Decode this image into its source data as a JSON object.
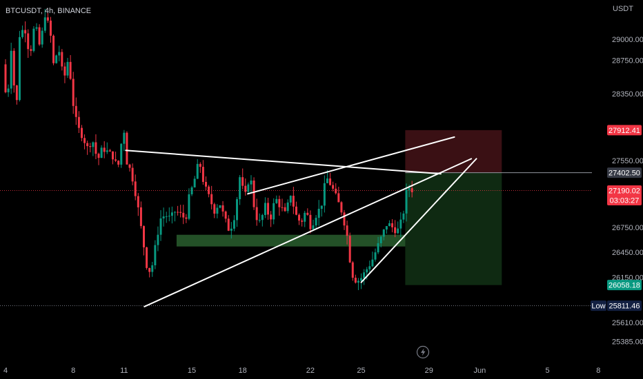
{
  "header": {
    "symbol": "BTCUSDT",
    "interval": "4h",
    "exchange": "BINANCE",
    "separator": ", "
  },
  "currency_label": "USDT",
  "footer_icon": "lightning-icon",
  "colors": {
    "background": "#000000",
    "up": "#089981",
    "down": "#f23645",
    "drawing": "#ffffff",
    "zone": "#2f6b34",
    "stop_zone": "#3a1014",
    "target_zone": "#0f2a12",
    "axis_text": "#b2b5be"
  },
  "chart_data": {
    "type": "candlestick",
    "ylim": [
      25200,
      29350
    ],
    "x_domain": [
      0,
      36
    ],
    "y_ticks": [
      29000,
      28750,
      28350,
      27550,
      26750,
      26450,
      26150,
      25610,
      25385
    ],
    "x_ticks": [
      {
        "label": "4",
        "x": 0
      },
      {
        "label": "8",
        "x": 4
      },
      {
        "label": "11",
        "x": 7
      },
      {
        "label": "15",
        "x": 11
      },
      {
        "label": "18",
        "x": 14
      },
      {
        "label": "22",
        "x": 18
      },
      {
        "label": "25",
        "x": 21
      },
      {
        "label": "29",
        "x": 25
      },
      {
        "label": "Jun",
        "x": 28
      },
      {
        "label": "5",
        "x": 32
      },
      {
        "label": "8",
        "x": 35
      }
    ],
    "price_labels": [
      {
        "value": 27912.41,
        "text": "27912.41",
        "color": "#f23645",
        "sub": ""
      },
      {
        "value": 27402.5,
        "text": "27402.50",
        "color": "#363a45",
        "sub": ""
      },
      {
        "value": 27190.02,
        "text": "27190.02",
        "color": "#f23645",
        "sub": "03:03:27"
      },
      {
        "value": 26058.18,
        "text": "26058.18",
        "color": "#089981",
        "sub": ""
      },
      {
        "value": 25811.46,
        "text": "25811.46",
        "color": "#132042",
        "sub": "",
        "tag": "Low"
      }
    ],
    "anchor_points": [
      [
        0,
        28700
      ],
      [
        0.25,
        28200
      ],
      [
        0.5,
        28900
      ],
      [
        0.8,
        28100
      ],
      [
        1.0,
        29050
      ],
      [
        1.3,
        29150
      ],
      [
        1.6,
        28800
      ],
      [
        1.9,
        29200
      ],
      [
        2.2,
        28900
      ],
      [
        2.5,
        29300
      ],
      [
        2.8,
        29100
      ],
      [
        3.0,
        28700
      ],
      [
        3.3,
        28900
      ],
      [
        3.6,
        28500
      ],
      [
        3.9,
        28800
      ],
      [
        4.1,
        28300
      ],
      [
        4.4,
        27950
      ],
      [
        4.7,
        27850
      ],
      [
        5.0,
        27700
      ],
      [
        5.3,
        27800
      ],
      [
        5.6,
        27550
      ],
      [
        5.9,
        27700
      ],
      [
        6.2,
        27650
      ],
      [
        6.5,
        27600
      ],
      [
        6.8,
        27450
      ],
      [
        7.0,
        27750
      ],
      [
        7.15,
        27950
      ],
      [
        7.3,
        27550
      ],
      [
        7.6,
        27400
      ],
      [
        7.9,
        27100
      ],
      [
        8.2,
        26700
      ],
      [
        8.5,
        26300
      ],
      [
        8.75,
        26200
      ],
      [
        9.0,
        26500
      ],
      [
        9.3,
        26850
      ],
      [
        9.6,
        26900
      ],
      [
        9.9,
        26850
      ],
      [
        10.2,
        26950
      ],
      [
        10.5,
        26900
      ],
      [
        10.8,
        26850
      ],
      [
        11.0,
        27100
      ],
      [
        11.3,
        27300
      ],
      [
        11.6,
        27550
      ],
      [
        11.9,
        27250
      ],
      [
        12.2,
        27100
      ],
      [
        12.5,
        26950
      ],
      [
        12.8,
        27050
      ],
      [
        13.1,
        26850
      ],
      [
        13.4,
        26700
      ],
      [
        13.7,
        26900
      ],
      [
        14.0,
        27350
      ],
      [
        14.3,
        27100
      ],
      [
        14.6,
        27400
      ],
      [
        14.9,
        26900
      ],
      [
        15.2,
        26800
      ],
      [
        15.5,
        27000
      ],
      [
        15.8,
        26850
      ],
      [
        16.1,
        27100
      ],
      [
        16.4,
        27000
      ],
      [
        16.7,
        26900
      ],
      [
        17.0,
        27150
      ],
      [
        17.3,
        26900
      ],
      [
        17.6,
        26800
      ],
      [
        17.9,
        26950
      ],
      [
        18.2,
        26750
      ],
      [
        18.5,
        26900
      ],
      [
        18.8,
        27000
      ],
      [
        19.1,
        27350
      ],
      [
        19.4,
        27250
      ],
      [
        19.7,
        27100
      ],
      [
        20.0,
        26950
      ],
      [
        20.3,
        26700
      ],
      [
        20.6,
        26200
      ],
      [
        20.9,
        26100
      ],
      [
        21.2,
        26150
      ],
      [
        21.5,
        26250
      ],
      [
        21.8,
        26350
      ],
      [
        22.1,
        26500
      ],
      [
        22.4,
        26650
      ],
      [
        22.7,
        26800
      ],
      [
        23.0,
        26750
      ],
      [
        23.3,
        26700
      ],
      [
        23.6,
        26850
      ],
      [
        23.9,
        27250
      ],
      [
        24.1,
        27200
      ]
    ],
    "drawings": {
      "lines": [
        {
          "x1": 7.1,
          "y1": 27670,
          "x2": 25.7,
          "y2": 27390
        },
        {
          "x1": 14.3,
          "y1": 27150,
          "x2": 26.5,
          "y2": 27830
        },
        {
          "x1": 8.2,
          "y1": 25800,
          "x2": 27.5,
          "y2": 27570
        },
        {
          "x1": 21.0,
          "y1": 26090,
          "x2": 27.8,
          "y2": 27570
        }
      ],
      "zones": [
        {
          "x1": 10.1,
          "x2": 27.3,
          "y1": 26660,
          "y2": 26520,
          "role": "support"
        },
        {
          "x1": 23.6,
          "x2": 29.3,
          "y1": 27912.41,
          "y2": 27402.5,
          "role": "stop"
        },
        {
          "x1": 23.6,
          "x2": 29.3,
          "y1": 27402.5,
          "y2": 26058.18,
          "role": "target"
        }
      ],
      "low_line": 25811.46,
      "entry_line": 27402.5,
      "current_line": 27190.02
    }
  }
}
